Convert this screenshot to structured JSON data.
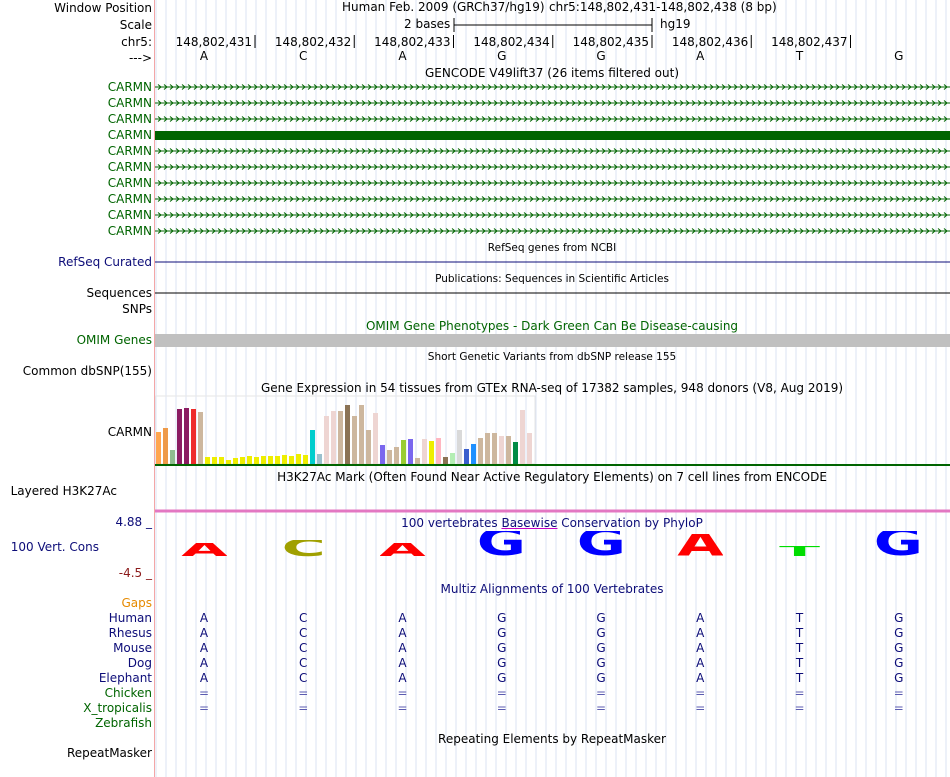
{
  "header": {
    "window_position_label": "Window Position",
    "scale_label": "Scale",
    "chrom_label": "chr5:",
    "strand_label": "--->",
    "assembly_title": "Human Feb. 2009 (GRCh37/hg19)",
    "position": "chr5:148,802,431-148,802,438 (8 bp)",
    "scale_text": "2 bases",
    "scale_db": "hg19"
  },
  "ruler": {
    "coords": [
      "148,802,431",
      "148,802,432",
      "148,802,433",
      "148,802,434",
      "148,802,435",
      "148,802,436",
      "148,802,437"
    ],
    "bases": [
      "A",
      "C",
      "A",
      "G",
      "G",
      "A",
      "T",
      "G"
    ]
  },
  "gencode": {
    "title": "GENCODE V49lift37 (26 items filtered out)",
    "gene_labels": [
      "CARMN",
      "CARMN",
      "CARMN",
      "CARMN",
      "CARMN",
      "CARMN",
      "CARMN",
      "CARMN",
      "CARMN",
      "CARMN"
    ],
    "thick_row_index": 3,
    "color": "#006400"
  },
  "refseq": {
    "title": "RefSeq genes from NCBI",
    "label": "RefSeq Curated"
  },
  "publications": {
    "title": "Publications: Sequences in Scientific Articles",
    "label": "Sequences"
  },
  "snps": {
    "label": "SNPs"
  },
  "omim": {
    "title": "OMIM Gene Phenotypes - Dark Green Can Be Disease-causing",
    "label": "OMIM Genes",
    "bar_color": "#c0c0c0"
  },
  "dbsnp": {
    "title": "Short Genetic Variants from dbSNP release 155",
    "label": "Common dbSNP(155)"
  },
  "gtex": {
    "title": "Gene Expression in 54 tissues from GTEx RNA-seq of 17382 samples, 948 donors (V8, Aug 2019)",
    "label": "CARMN",
    "bars": [
      {
        "v": 0.38,
        "c": "#ffa54f"
      },
      {
        "v": 0.42,
        "c": "#ee9a49"
      },
      {
        "v": 0.17,
        "c": "#8fbc8f"
      },
      {
        "v": 0.65,
        "c": "#8b1c62"
      },
      {
        "v": 0.66,
        "c": "#8b1c62"
      },
      {
        "v": 0.65,
        "c": "#ee2c2c"
      },
      {
        "v": 0.61,
        "c": "#cdb79e"
      },
      {
        "v": 0.08,
        "c": "#eeee00"
      },
      {
        "v": 0.08,
        "c": "#eeee00"
      },
      {
        "v": 0.08,
        "c": "#eeee00"
      },
      {
        "v": 0.05,
        "c": "#eeee00"
      },
      {
        "v": 0.07,
        "c": "#eeee00"
      },
      {
        "v": 0.08,
        "c": "#eeee00"
      },
      {
        "v": 0.09,
        "c": "#eeee00"
      },
      {
        "v": 0.08,
        "c": "#eeee00"
      },
      {
        "v": 0.09,
        "c": "#eeee00"
      },
      {
        "v": 0.09,
        "c": "#eeee00"
      },
      {
        "v": 0.09,
        "c": "#eeee00"
      },
      {
        "v": 0.1,
        "c": "#eeee00"
      },
      {
        "v": 0.09,
        "c": "#eeee00"
      },
      {
        "v": 0.12,
        "c": "#eeee00"
      },
      {
        "v": 0.1,
        "c": "#eeee00"
      },
      {
        "v": 0.4,
        "c": "#00cdcd"
      },
      {
        "v": 0.12,
        "c": "#9ac0cd"
      },
      {
        "v": 0.57,
        "c": "#eed5d2"
      },
      {
        "v": 0.62,
        "c": "#eed5d2"
      },
      {
        "v": 0.62,
        "c": "#cdb79e"
      },
      {
        "v": 0.69,
        "c": "#8b7355"
      },
      {
        "v": 0.57,
        "c": "#cdb79e"
      },
      {
        "v": 0.69,
        "c": "#cdb79e"
      },
      {
        "v": 0.4,
        "c": "#cdb79e"
      },
      {
        "v": 0.6,
        "c": "#eed5d2"
      },
      {
        "v": 0.22,
        "c": "#7a67ee"
      },
      {
        "v": 0.16,
        "c": "#cdb79e"
      },
      {
        "v": 0.2,
        "c": "#cdb79e"
      },
      {
        "v": 0.28,
        "c": "#9acd32"
      },
      {
        "v": 0.29,
        "c": "#7a67ee"
      },
      {
        "v": 0.07,
        "c": "#cdb79e"
      },
      {
        "v": 0.29,
        "c": "#eed5d2"
      },
      {
        "v": 0.27,
        "c": "#eeee00"
      },
      {
        "v": 0.3,
        "c": "#ffb6c1"
      },
      {
        "v": 0.08,
        "c": "#8b7355"
      },
      {
        "v": 0.13,
        "c": "#b4eeb4"
      },
      {
        "v": 0.4,
        "c": "#d9d9d9"
      },
      {
        "v": 0.18,
        "c": "#3a5fcd"
      },
      {
        "v": 0.23,
        "c": "#1e90ff"
      },
      {
        "v": 0.3,
        "c": "#cdb79e"
      },
      {
        "v": 0.36,
        "c": "#cdb79e"
      },
      {
        "v": 0.36,
        "c": "#cdb79e"
      },
      {
        "v": 0.33,
        "c": "#eed5d2"
      },
      {
        "v": 0.33,
        "c": "#cdb79e"
      },
      {
        "v": 0.26,
        "c": "#008b45"
      },
      {
        "v": 0.64,
        "c": "#eed5d2"
      },
      {
        "v": 0.37,
        "c": "#eed5d2"
      }
    ]
  },
  "h3k27ac": {
    "title": "H3K27Ac Mark (Often Found Near Active Regulatory Elements) on 7 cell lines from ENCODE",
    "label": "Layered H3K27Ac",
    "line_color": "#e377c2"
  },
  "conservation": {
    "title_pre": "100 vertebrates ",
    "title_link": "Basewise",
    "title_post": " Conservation by PhyloP",
    "label": "100 Vert. Cons",
    "ymax": "4.88 _",
    "ymin": "-4.5 _",
    "letters": [
      {
        "b": "A",
        "h": 0.45,
        "c": "#ff0000"
      },
      {
        "b": "C",
        "h": 0.55,
        "c": "#a0a000"
      },
      {
        "b": "A",
        "h": 0.45,
        "c": "#ff0000"
      },
      {
        "b": "G",
        "h": 0.85,
        "c": "#0000ff"
      },
      {
        "b": "G",
        "h": 0.85,
        "c": "#0000ff"
      },
      {
        "b": "A",
        "h": 0.75,
        "c": "#ff0000"
      },
      {
        "b": "T",
        "h": 0.35,
        "c": "#00dd00"
      },
      {
        "b": "G",
        "h": 0.85,
        "c": "#0000ff"
      }
    ]
  },
  "multiz": {
    "title": "Multiz Alignments of 100 Vertebrates",
    "gaps_label": "Gaps",
    "species": [
      {
        "name": "Human",
        "seq": [
          "A",
          "C",
          "A",
          "G",
          "G",
          "A",
          "T",
          "G"
        ]
      },
      {
        "name": "Rhesus",
        "seq": [
          "A",
          "C",
          "A",
          "G",
          "G",
          "A",
          "T",
          "G"
        ]
      },
      {
        "name": "Mouse",
        "seq": [
          "A",
          "C",
          "A",
          "G",
          "G",
          "A",
          "T",
          "G"
        ]
      },
      {
        "name": "Dog",
        "seq": [
          "A",
          "C",
          "A",
          "G",
          "G",
          "A",
          "T",
          "G"
        ]
      },
      {
        "name": "Elephant",
        "seq": [
          "A",
          "C",
          "A",
          "G",
          "G",
          "A",
          "T",
          "G"
        ]
      },
      {
        "name": "Chicken",
        "seq": [
          "=",
          "=",
          "=",
          "=",
          "=",
          "=",
          "=",
          "="
        ]
      },
      {
        "name": "X_tropicalis",
        "seq": [
          "=",
          "=",
          "=",
          "=",
          "=",
          "=",
          "=",
          "="
        ]
      },
      {
        "name": "Zebrafish",
        "seq": []
      }
    ]
  },
  "repeatmasker": {
    "title": "Repeating Elements by RepeatMasker",
    "label": "RepeatMasker"
  }
}
